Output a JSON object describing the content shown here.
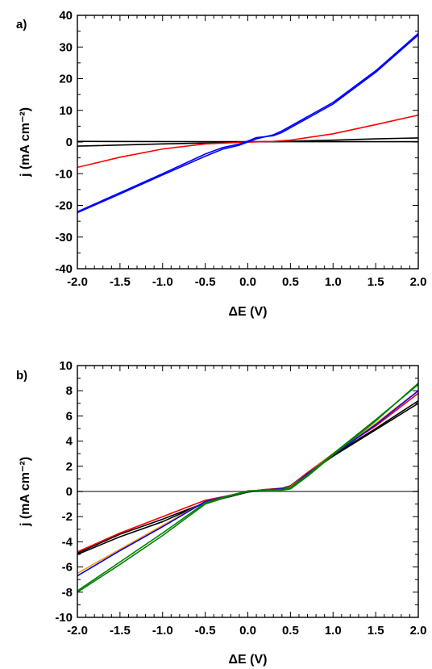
{
  "chart_data": [
    {
      "type": "line",
      "panel_label": "a)",
      "xlabel": "ΔE (V)",
      "ylabel": "j (mA cm⁻²)",
      "xlim": [
        -2.0,
        2.0
      ],
      "ylim": [
        -40,
        40
      ],
      "xticks": [
        "-2.0",
        "-1.5",
        "-1.0",
        "-0.5",
        "0.0",
        "0.5",
        "1.0",
        "1.5",
        "2.0"
      ],
      "yticks": [
        "-40",
        "-30",
        "-20",
        "-10",
        "0",
        "10",
        "20",
        "30",
        "40"
      ],
      "grid": false,
      "series": [
        {
          "color": "#000000",
          "x": [
            -2.0,
            -1.0,
            -0.5,
            0.0,
            0.5,
            1.0,
            1.5,
            2.0
          ],
          "y": [
            -1.3,
            -0.6,
            -0.3,
            0.0,
            0.25,
            0.6,
            1.0,
            1.3
          ]
        },
        {
          "color": "#000000",
          "x": [
            -2.0,
            0.0,
            2.0
          ],
          "y": [
            0.2,
            0.1,
            0.1
          ]
        },
        {
          "color": "#ff0000",
          "x": [
            -2.0,
            -1.5,
            -1.0,
            -0.5,
            0.0,
            0.3,
            0.5,
            1.0,
            1.5,
            2.0
          ],
          "y": [
            -8.0,
            -4.8,
            -2.2,
            -0.6,
            0.0,
            0.2,
            0.6,
            2.6,
            5.5,
            8.5
          ]
        },
        {
          "color": "#0000ff",
          "x": [
            -2.0,
            -1.5,
            -1.0,
            -0.5,
            -0.3,
            -0.1,
            0.0,
            0.1,
            0.3,
            0.4,
            0.6,
            1.0,
            1.5,
            2.0
          ],
          "y": [
            -22.3,
            -16.4,
            -10.4,
            -4.5,
            -2.3,
            -1.0,
            0.0,
            1.0,
            2.3,
            3.5,
            6.5,
            12.5,
            22.5,
            34.3
          ]
        },
        {
          "color": "#0000ff",
          "x": [
            -2.0,
            -1.5,
            -1.0,
            -0.5,
            -0.3,
            -0.1,
            0.0,
            0.1,
            0.3,
            0.4,
            0.6,
            1.0,
            1.5,
            2.0
          ],
          "y": [
            -22.0,
            -16.0,
            -10.0,
            -3.8,
            -1.8,
            -0.6,
            0.3,
            1.4,
            2.0,
            3.0,
            6.0,
            12.0,
            22.0,
            33.8
          ]
        }
      ]
    },
    {
      "type": "line",
      "panel_label": "b)",
      "xlabel": "ΔE (V)",
      "ylabel": "j (mA cm⁻²)",
      "xlim": [
        -2.0,
        2.0
      ],
      "ylim": [
        -10,
        10
      ],
      "xticks": [
        "-2.0",
        "-1.5",
        "-1.0",
        "-0.5",
        "0.0",
        "0.5",
        "1.0",
        "1.5",
        "2.0"
      ],
      "yticks": [
        "-10",
        "-8",
        "-6",
        "-4",
        "-2",
        "0",
        "2",
        "4",
        "6",
        "8",
        "10"
      ],
      "grid": false,
      "series": [
        {
          "color": "#555555",
          "x": [
            -2.0,
            2.0
          ],
          "y": [
            0.0,
            0.0
          ]
        },
        {
          "color": "#000000",
          "x": [
            -2.0,
            -1.5,
            -1.0,
            -0.5,
            -0.2,
            0.0,
            0.2,
            0.4,
            0.5,
            0.7,
            1.0,
            1.5,
            2.0
          ],
          "y": [
            -4.9,
            -3.4,
            -2.2,
            -0.9,
            -0.35,
            0.0,
            0.15,
            0.25,
            0.45,
            1.5,
            2.9,
            5.0,
            7.2
          ]
        },
        {
          "color": "#000000",
          "x": [
            -2.0,
            -1.5,
            -1.0,
            -0.5,
            -0.2,
            0.0,
            0.2,
            0.4,
            0.5,
            0.7,
            1.0,
            1.5,
            2.0
          ],
          "y": [
            -5.0,
            -3.6,
            -2.4,
            -0.9,
            -0.4,
            -0.05,
            0.1,
            0.2,
            0.35,
            1.4,
            2.8,
            4.9,
            7.0
          ]
        },
        {
          "color": "#ff0000",
          "x": [
            -2.0,
            -1.5,
            -1.0,
            -0.5,
            -0.2,
            0.0,
            0.2,
            0.4,
            0.5,
            0.7,
            1.0,
            1.5,
            2.0
          ],
          "y": [
            -4.8,
            -3.3,
            -2.0,
            -0.7,
            -0.3,
            0.0,
            0.15,
            0.2,
            0.4,
            1.5,
            3.0,
            5.2,
            7.8
          ]
        },
        {
          "color": "#ff9900",
          "x": [
            -2.0,
            -1.5,
            -1.0,
            -0.5,
            -0.2,
            0.0,
            0.2,
            0.4,
            0.5,
            0.7,
            1.0,
            1.5,
            2.0
          ],
          "y": [
            -6.5,
            -4.6,
            -2.7,
            -0.8,
            -0.3,
            0.0,
            0.1,
            0.2,
            0.35,
            1.4,
            3.0,
            5.4,
            8.0
          ]
        },
        {
          "color": "#0000ff",
          "x": [
            -2.0,
            -1.5,
            -1.0,
            -0.5,
            -0.2,
            0.0,
            0.2,
            0.4,
            0.5,
            0.7,
            1.0,
            1.5,
            2.0
          ],
          "y": [
            -6.7,
            -4.7,
            -2.8,
            -0.8,
            -0.3,
            0.0,
            0.1,
            0.2,
            0.3,
            1.4,
            2.9,
            5.3,
            8.0
          ]
        },
        {
          "color": "#008000",
          "x": [
            -2.0,
            -1.5,
            -1.0,
            -0.5,
            -0.2,
            0.0,
            0.2,
            0.4,
            0.5,
            0.7,
            1.0,
            1.5,
            2.0
          ],
          "y": [
            -8.0,
            -5.8,
            -3.5,
            -1.0,
            -0.35,
            0.0,
            0.1,
            0.1,
            0.2,
            1.2,
            2.9,
            5.6,
            8.6
          ]
        },
        {
          "color": "#008000",
          "x": [
            -2.0,
            -1.5,
            -1.0,
            -0.5,
            -0.2,
            0.0,
            0.2,
            0.4,
            0.5,
            0.7,
            1.0,
            1.5,
            2.0
          ],
          "y": [
            -7.9,
            -5.6,
            -3.3,
            -0.9,
            -0.3,
            0.05,
            0.1,
            0.15,
            0.3,
            1.3,
            3.0,
            5.7,
            8.5
          ]
        }
      ]
    }
  ]
}
